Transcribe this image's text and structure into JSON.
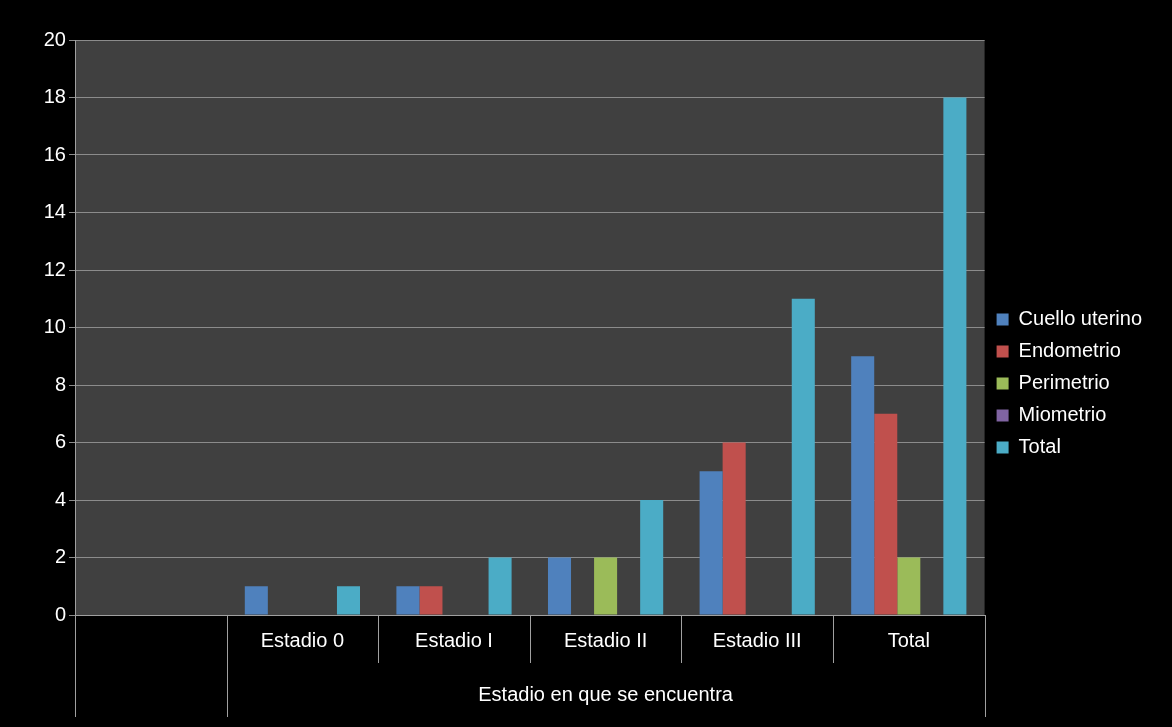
{
  "chart_data": {
    "type": "bar",
    "xlabel": "Estadio en que se encuentra",
    "categories": [
      null,
      "Estadio 0",
      "Estadio I",
      "Estadio II",
      "Estadio III",
      "Total"
    ],
    "series": [
      {
        "name": "Cuello uterino",
        "color": "#4f81bd",
        "values": [
          null,
          1,
          1,
          2,
          5,
          9
        ]
      },
      {
        "name": "Endometrio",
        "color": "#c0504d",
        "values": [
          null,
          null,
          1,
          null,
          6,
          7
        ]
      },
      {
        "name": "Perimetrio",
        "color": "#9bbb59",
        "values": [
          null,
          null,
          null,
          2,
          null,
          2
        ]
      },
      {
        "name": "Miometrio",
        "color": "#8064a2",
        "values": [
          null,
          null,
          null,
          null,
          null,
          null
        ]
      },
      {
        "name": "Total",
        "color": "#4bacc6",
        "values": [
          null,
          1,
          2,
          4,
          11,
          18
        ]
      }
    ],
    "ylim": [
      0,
      20
    ],
    "yticks": [
      0,
      2,
      4,
      6,
      8,
      10,
      12,
      14,
      16,
      18,
      20
    ],
    "grid": "y",
    "legend": "right"
  }
}
